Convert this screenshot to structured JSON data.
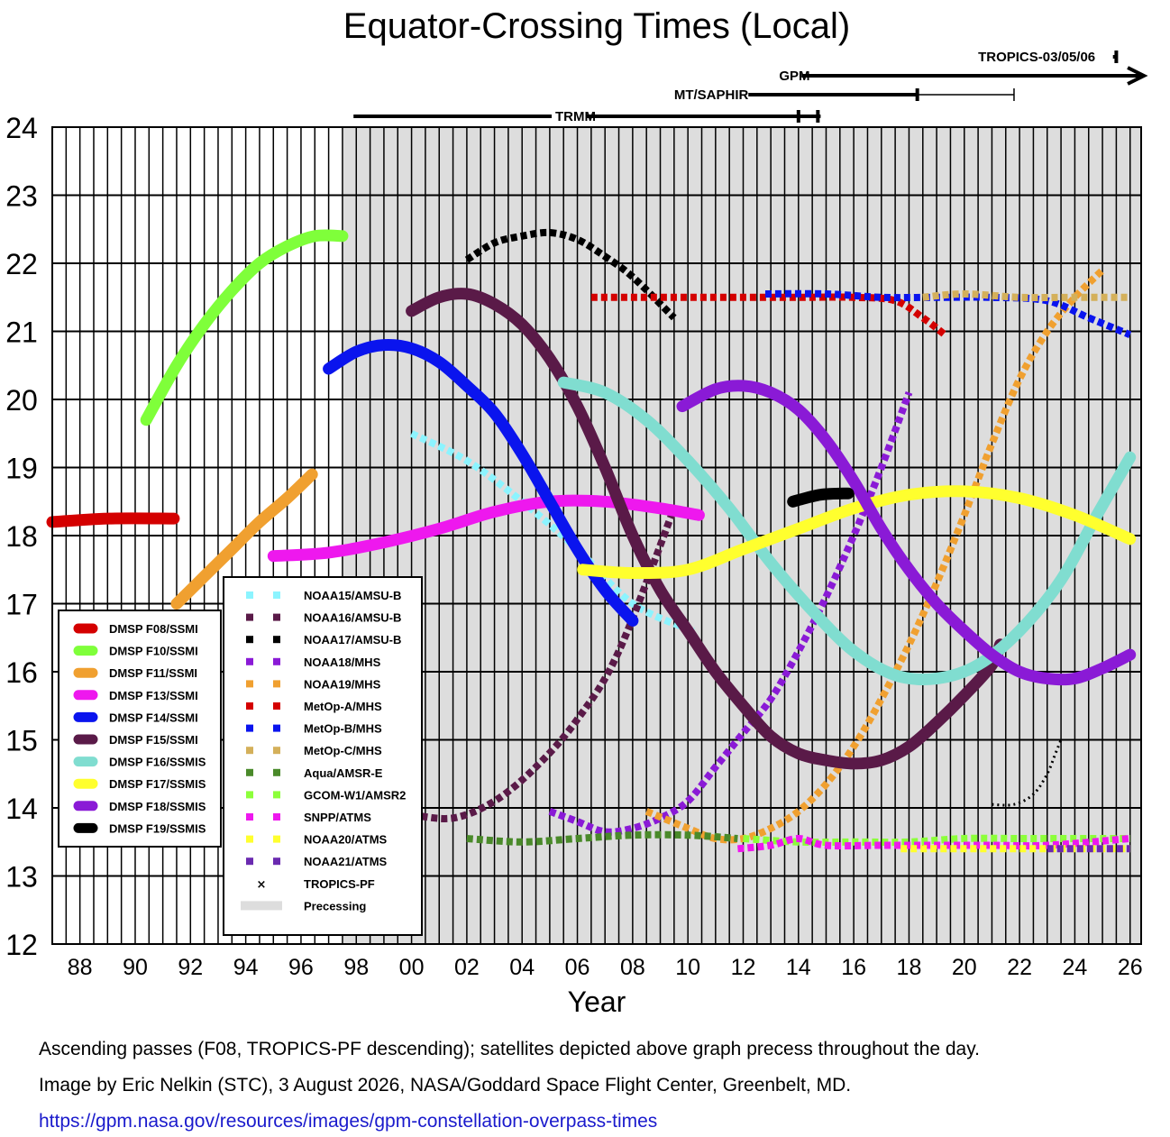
{
  "chart_data": {
    "type": "line",
    "title": "Equator-Crossing Times (Local)",
    "xlabel": "Year",
    "ylabel": "",
    "xlim": [
      1987,
      2026.4
    ],
    "ylim": [
      12,
      24
    ],
    "x_ticks": [
      {
        "x": 1988,
        "label": "88"
      },
      {
        "x": 1990,
        "label": "90"
      },
      {
        "x": 1992,
        "label": "92"
      },
      {
        "x": 1994,
        "label": "94"
      },
      {
        "x": 1996,
        "label": "96"
      },
      {
        "x": 1998,
        "label": "98"
      },
      {
        "x": 2000,
        "label": "00"
      },
      {
        "x": 2002,
        "label": "02"
      },
      {
        "x": 2004,
        "label": "04"
      },
      {
        "x": 2006,
        "label": "06"
      },
      {
        "x": 2008,
        "label": "08"
      },
      {
        "x": 2010,
        "label": "10"
      },
      {
        "x": 2012,
        "label": "12"
      },
      {
        "x": 2014,
        "label": "14"
      },
      {
        "x": 2016,
        "label": "16"
      },
      {
        "x": 2018,
        "label": "18"
      },
      {
        "x": 2020,
        "label": "20"
      },
      {
        "x": 2022,
        "label": "22"
      },
      {
        "x": 2024,
        "label": "24"
      },
      {
        "x": 2026,
        "label": "26"
      }
    ],
    "y_ticks": [
      "12",
      "13",
      "14",
      "15",
      "16",
      "17",
      "18",
      "19",
      "20",
      "21",
      "22",
      "23",
      "24"
    ],
    "grid": true,
    "precessing_region": [
      1997.5,
      2026.4
    ],
    "legend_left": "lower-left",
    "legend_right": "lower-left",
    "series": [
      {
        "name": "DMSP F08/SSMI",
        "color": "#d40000",
        "style": "dots",
        "points": [
          [
            1987.0,
            18.2
          ],
          [
            1989.0,
            18.25
          ],
          [
            1991.4,
            18.25
          ]
        ]
      },
      {
        "name": "DMSP F10/SSMI",
        "color": "#7fff3a",
        "style": "dots",
        "points": [
          [
            1990.4,
            19.7
          ],
          [
            1991.5,
            20.5
          ],
          [
            1992.5,
            21.1
          ],
          [
            1993.5,
            21.6
          ],
          [
            1994.5,
            22.0
          ],
          [
            1995.5,
            22.25
          ],
          [
            1996.5,
            22.4
          ],
          [
            1997.5,
            22.4
          ]
        ]
      },
      {
        "name": "DMSP F11/SSMI",
        "color": "#f0a030",
        "style": "dots",
        "points": [
          [
            1991.5,
            17.0
          ],
          [
            1992.5,
            17.4
          ],
          [
            1993.5,
            17.8
          ],
          [
            1994.5,
            18.2
          ],
          [
            1995.5,
            18.55
          ],
          [
            1996.4,
            18.9
          ]
        ]
      },
      {
        "name": "DMSP F13/SSMI",
        "color": "#ee18ee",
        "style": "dots",
        "points": [
          [
            1995.0,
            17.7
          ],
          [
            1997.0,
            17.75
          ],
          [
            1999.0,
            17.9
          ],
          [
            2001.0,
            18.1
          ],
          [
            2003.0,
            18.35
          ],
          [
            2005.0,
            18.5
          ],
          [
            2007.0,
            18.5
          ],
          [
            2009.0,
            18.4
          ],
          [
            2010.4,
            18.3
          ]
        ]
      },
      {
        "name": "DMSP F14/SSMI",
        "color": "#0a14ee",
        "style": "dots",
        "points": [
          [
            1997.0,
            20.45
          ],
          [
            1998.0,
            20.7
          ],
          [
            1999.0,
            20.8
          ],
          [
            2000.0,
            20.75
          ],
          [
            2001.0,
            20.55
          ],
          [
            2002.0,
            20.2
          ],
          [
            2003.0,
            19.8
          ],
          [
            2004.0,
            19.2
          ],
          [
            2005.0,
            18.5
          ],
          [
            2006.0,
            17.8
          ],
          [
            2007.0,
            17.2
          ],
          [
            2008.0,
            16.75
          ]
        ]
      },
      {
        "name": "DMSP F15/SSMI",
        "color": "#5a1a48",
        "style": "dots",
        "points": [
          [
            2000.0,
            21.3
          ],
          [
            2001.0,
            21.5
          ],
          [
            2002.0,
            21.55
          ],
          [
            2003.0,
            21.4
          ],
          [
            2004.0,
            21.1
          ],
          [
            2005.0,
            20.6
          ],
          [
            2006.0,
            19.9
          ],
          [
            2007.0,
            19.0
          ],
          [
            2008.0,
            18.0
          ],
          [
            2009.0,
            17.2
          ],
          [
            2010.0,
            16.6
          ],
          [
            2011.0,
            16.0
          ],
          [
            2012.0,
            15.5
          ],
          [
            2013.0,
            15.05
          ],
          [
            2014.0,
            14.8
          ],
          [
            2015.0,
            14.7
          ],
          [
            2016.0,
            14.65
          ],
          [
            2017.0,
            14.7
          ],
          [
            2018.0,
            14.9
          ],
          [
            2019.0,
            15.25
          ],
          [
            2020.0,
            15.65
          ],
          [
            2021.0,
            16.1
          ],
          [
            2021.3,
            16.4
          ]
        ]
      },
      {
        "name": "DMSP F16/SSMIS",
        "color": "#80ddd0",
        "style": "dots",
        "points": [
          [
            2005.5,
            20.25
          ],
          [
            2007.0,
            20.1
          ],
          [
            2008.5,
            19.7
          ],
          [
            2010.0,
            19.1
          ],
          [
            2011.5,
            18.4
          ],
          [
            2013.0,
            17.6
          ],
          [
            2014.5,
            16.9
          ],
          [
            2016.0,
            16.3
          ],
          [
            2017.5,
            15.95
          ],
          [
            2019.0,
            15.9
          ],
          [
            2020.5,
            16.1
          ],
          [
            2022.0,
            16.6
          ],
          [
            2023.5,
            17.35
          ],
          [
            2024.8,
            18.3
          ],
          [
            2026.0,
            19.15
          ]
        ]
      },
      {
        "name": "DMSP F17/SSMIS",
        "color": "#ffff2e",
        "style": "dots",
        "points": [
          [
            2006.2,
            17.5
          ],
          [
            2008.0,
            17.45
          ],
          [
            2010.0,
            17.5
          ],
          [
            2012.0,
            17.8
          ],
          [
            2014.0,
            18.1
          ],
          [
            2016.0,
            18.4
          ],
          [
            2018.0,
            18.6
          ],
          [
            2020.0,
            18.65
          ],
          [
            2022.0,
            18.55
          ],
          [
            2024.0,
            18.3
          ],
          [
            2026.0,
            17.95
          ]
        ]
      },
      {
        "name": "DMSP F18/SSMIS",
        "color": "#8a1ad6",
        "style": "dots",
        "points": [
          [
            2009.8,
            19.9
          ],
          [
            2011.0,
            20.15
          ],
          [
            2012.0,
            20.2
          ],
          [
            2013.0,
            20.1
          ],
          [
            2014.0,
            19.85
          ],
          [
            2015.0,
            19.4
          ],
          [
            2016.0,
            18.8
          ],
          [
            2017.0,
            18.1
          ],
          [
            2018.0,
            17.5
          ],
          [
            2019.0,
            17.0
          ],
          [
            2020.0,
            16.6
          ],
          [
            2021.0,
            16.25
          ],
          [
            2022.0,
            16.0
          ],
          [
            2023.0,
            15.9
          ],
          [
            2024.0,
            15.9
          ],
          [
            2025.0,
            16.05
          ],
          [
            2026.0,
            16.25
          ]
        ]
      },
      {
        "name": "DMSP F19/SSMIS",
        "color": "#000000",
        "style": "dots",
        "points": [
          [
            2013.8,
            18.5
          ],
          [
            2014.8,
            18.6
          ],
          [
            2015.8,
            18.62
          ]
        ]
      },
      {
        "name": "NOAA15/AMSU-B",
        "color": "#8cf4ff",
        "style": "squares",
        "points": [
          [
            2000.0,
            19.5
          ],
          [
            2002.0,
            19.1
          ],
          [
            2004.0,
            18.5
          ],
          [
            2006.0,
            17.8
          ],
          [
            2008.0,
            17.0
          ],
          [
            2010.2,
            16.6
          ]
        ]
      },
      {
        "name": "NOAA16/AMSU-B",
        "color": "#5a1a48",
        "style": "squares",
        "points": [
          [
            2000.0,
            13.9
          ],
          [
            2001.5,
            13.85
          ],
          [
            2003.0,
            14.1
          ],
          [
            2004.5,
            14.6
          ],
          [
            2006.0,
            15.3
          ],
          [
            2007.5,
            16.3
          ],
          [
            2009.5,
            18.4
          ]
        ]
      },
      {
        "name": "NOAA17/AMSU-B",
        "color": "#000000",
        "style": "squares",
        "points": [
          [
            2002.0,
            22.05
          ],
          [
            2003.0,
            22.3
          ],
          [
            2004.0,
            22.4
          ],
          [
            2005.0,
            22.45
          ],
          [
            2006.0,
            22.35
          ],
          [
            2007.0,
            22.1
          ],
          [
            2008.0,
            21.8
          ],
          [
            2009.5,
            21.2
          ]
        ]
      },
      {
        "name": "NOAA18/MHS",
        "color": "#8a1ad6",
        "style": "squares",
        "points": [
          [
            2005.0,
            13.95
          ],
          [
            2006.0,
            13.8
          ],
          [
            2007.0,
            13.65
          ],
          [
            2008.0,
            13.7
          ],
          [
            2009.0,
            13.85
          ],
          [
            2010.0,
            14.1
          ],
          [
            2011.0,
            14.6
          ],
          [
            2012.0,
            15.1
          ],
          [
            2013.0,
            15.6
          ],
          [
            2014.0,
            16.3
          ],
          [
            2015.0,
            17.1
          ],
          [
            2016.0,
            18.0
          ],
          [
            2017.0,
            19.0
          ],
          [
            2018.0,
            20.1
          ]
        ]
      },
      {
        "name": "NOAA19/MHS",
        "color": "#f0a030",
        "style": "squares",
        "points": [
          [
            2008.5,
            13.95
          ],
          [
            2010.0,
            13.7
          ],
          [
            2011.0,
            13.55
          ],
          [
            2012.0,
            13.55
          ],
          [
            2013.0,
            13.7
          ],
          [
            2014.0,
            13.95
          ],
          [
            2015.0,
            14.35
          ],
          [
            2016.0,
            14.9
          ],
          [
            2017.0,
            15.6
          ],
          [
            2018.0,
            16.4
          ],
          [
            2019.0,
            17.3
          ],
          [
            2020.0,
            18.3
          ],
          [
            2021.0,
            19.35
          ],
          [
            2022.0,
            20.3
          ],
          [
            2023.0,
            21.0
          ],
          [
            2024.0,
            21.5
          ],
          [
            2025.0,
            21.9
          ]
        ]
      },
      {
        "name": "MetOp-A/MHS",
        "color": "#d40000",
        "style": "squares",
        "points": [
          [
            2006.5,
            21.5
          ],
          [
            2008.0,
            21.5
          ],
          [
            2010.0,
            21.5
          ],
          [
            2012.0,
            21.5
          ],
          [
            2014.0,
            21.5
          ],
          [
            2016.0,
            21.5
          ],
          [
            2017.5,
            21.45
          ],
          [
            2018.5,
            21.2
          ],
          [
            2019.3,
            20.95
          ]
        ]
      },
      {
        "name": "MetOp-B/MHS",
        "color": "#0a14ee",
        "style": "squares",
        "points": [
          [
            2012.8,
            21.55
          ],
          [
            2015.0,
            21.55
          ],
          [
            2017.0,
            21.5
          ],
          [
            2019.0,
            21.5
          ],
          [
            2021.0,
            21.5
          ],
          [
            2023.0,
            21.45
          ],
          [
            2024.5,
            21.2
          ],
          [
            2026.0,
            20.95
          ]
        ]
      },
      {
        "name": "MetOp-C/MHS",
        "color": "#d4b05a",
        "style": "squares",
        "points": [
          [
            2018.5,
            21.5
          ],
          [
            2020.0,
            21.55
          ],
          [
            2022.0,
            21.5
          ],
          [
            2024.0,
            21.5
          ],
          [
            2026.0,
            21.5
          ]
        ]
      },
      {
        "name": "Aqua/AMSR-E",
        "color": "#4a8a2a",
        "style": "squares",
        "points": [
          [
            2002.0,
            13.55
          ],
          [
            2004.0,
            13.5
          ],
          [
            2006.0,
            13.55
          ],
          [
            2008.0,
            13.6
          ],
          [
            2010.0,
            13.6
          ],
          [
            2011.8,
            13.55
          ]
        ]
      },
      {
        "name": "GCOM-W1/AMSR2",
        "color": "#8cff3a",
        "style": "squares",
        "points": [
          [
            2012.0,
            13.55
          ],
          [
            2014.0,
            13.5
          ],
          [
            2016.0,
            13.5
          ],
          [
            2018.0,
            13.5
          ],
          [
            2020.0,
            13.55
          ],
          [
            2022.0,
            13.55
          ],
          [
            2024.0,
            13.55
          ],
          [
            2026.0,
            13.55
          ]
        ]
      },
      {
        "name": "SNPP/ATMS",
        "color": "#ee18ee",
        "style": "squares",
        "points": [
          [
            2011.8,
            13.4
          ],
          [
            2013.0,
            13.45
          ],
          [
            2014.0,
            13.55
          ],
          [
            2015.0,
            13.45
          ],
          [
            2017.0,
            13.45
          ],
          [
            2019.0,
            13.45
          ],
          [
            2021.0,
            13.45
          ],
          [
            2023.0,
            13.45
          ],
          [
            2026.0,
            13.55
          ]
        ]
      },
      {
        "name": "NOAA20/ATMS",
        "color": "#ffff2e",
        "style": "squares",
        "points": [
          [
            2017.7,
            13.4
          ],
          [
            2020.0,
            13.4
          ],
          [
            2022.0,
            13.4
          ],
          [
            2024.0,
            13.4
          ],
          [
            2026.0,
            13.4
          ]
        ]
      },
      {
        "name": "NOAA21/ATMS",
        "color": "#6a2ab0",
        "style": "squares",
        "points": [
          [
            2023.0,
            13.4
          ],
          [
            2024.5,
            13.4
          ],
          [
            2026.0,
            13.4
          ]
        ]
      },
      {
        "name": "TROPICS-PF",
        "color": "#000000",
        "style": "crosses",
        "points": [
          [
            2021.0,
            14.05
          ],
          [
            2021.8,
            14.05
          ],
          [
            2022.5,
            14.2
          ],
          [
            2023.0,
            14.5
          ],
          [
            2023.3,
            14.8
          ],
          [
            2023.5,
            15.0
          ]
        ]
      }
    ],
    "precessing_label": "Precessing",
    "precessing_color": "#dddddd",
    "precessing_bars": [
      {
        "label": "TRMM",
        "start": 1997.9,
        "end": 2014.8,
        "thin_from": 2014.0,
        "end_style": "ticks"
      },
      {
        "label": "MT/SAPHIR",
        "start": 2011.5,
        "end": 2021.8,
        "thin_from": 2018.3,
        "end_style": "tick"
      },
      {
        "label": "GPM",
        "start": 2014.1,
        "end": 2026.5,
        "thin_from": null,
        "end_style": "arrow"
      },
      {
        "label": "TROPICS-03/05/06",
        "start": 2023.0,
        "end": 2025.5,
        "thin_from": null,
        "end_style": "tick"
      }
    ]
  },
  "captions": {
    "line1": "Ascending passes (F08, TROPICS-PF descending); satellites depicted above graph precess throughout the day.",
    "line2": "Image by Eric Nelkin (STC), 3 August 2026, NASA/Goddard Space Flight Center, Greenbelt, MD.",
    "url": "https://gpm.nasa.gov/resources/images/gpm-constellation-overpass-times"
  }
}
